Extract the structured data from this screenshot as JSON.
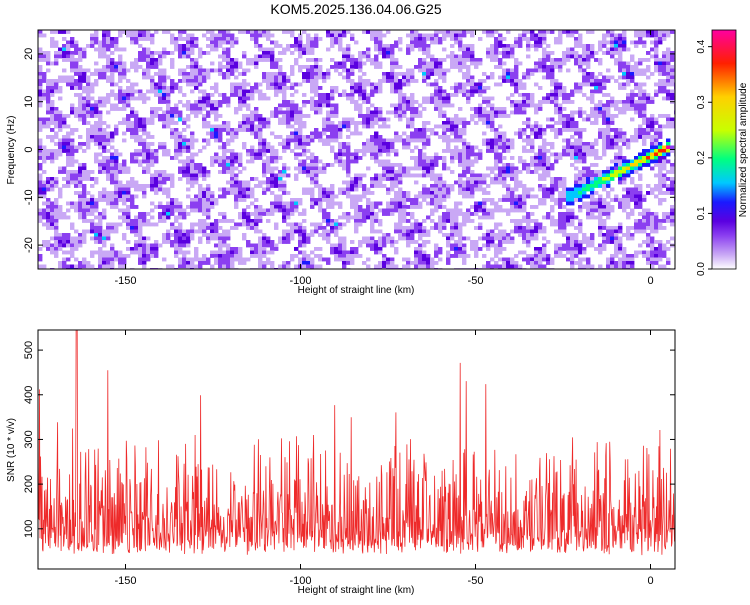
{
  "title": "KOM5.2025.136.04.06.G25",
  "chart_data": [
    {
      "type": "heatmap",
      "xlabel": "Height of straight line (km)",
      "ylabel": "Frequency (Hz)",
      "colorbar_label": "Normalized spectral amplitude",
      "xlim": [
        -175,
        7
      ],
      "ylim": [
        -25,
        25
      ],
      "x_ticks": [
        -150,
        -100,
        -50,
        0
      ],
      "y_ticks": [
        -20,
        -10,
        0,
        10,
        20
      ],
      "colorbar_range": [
        0,
        0.43
      ],
      "colorbar_ticks": [
        0.0,
        0.1,
        0.2,
        0.3,
        0.4
      ],
      "colorbar_tick_labels": [
        "0.0",
        "0.1",
        "0.2",
        "0.3",
        "0.4"
      ],
      "colormap": [
        "#ffffff",
        "#c9a8f5",
        "#8b3ff0",
        "#5a00e0",
        "#1a1aff",
        "#00c8ff",
        "#00ff80",
        "#c8ff00",
        "#ffd000",
        "#ff2000",
        "#ff00a0"
      ],
      "grid": false,
      "features": [
        {
          "description": "strong signal",
          "x_start": -25,
          "x_end": 5,
          "freq_start": -10,
          "freq_end": 1,
          "peak_value": 0.43
        }
      ]
    },
    {
      "type": "line",
      "xlabel": "Height of straight line (km)",
      "ylabel": "SNR (10 * v/v)",
      "xlim": [
        -175,
        7
      ],
      "ylim": [
        10,
        545
      ],
      "x_ticks": [
        -150,
        -100,
        -50,
        0
      ],
      "y_ticks": [
        100,
        200,
        300,
        400,
        500
      ],
      "color": "#ee2a2a",
      "grid": false,
      "series_summary": {
        "typical_min": 40,
        "typical_max": 250,
        "peak_x": -164,
        "peak_y": 545
      }
    }
  ]
}
